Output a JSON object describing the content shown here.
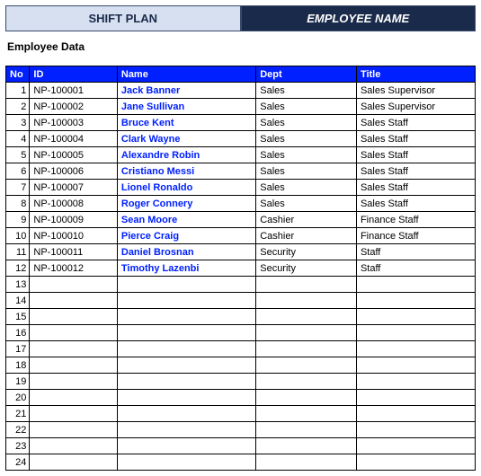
{
  "tabs": {
    "left": "SHIFT PLAN",
    "right": "EMPLOYEE NAME"
  },
  "section_title": "Employee Data",
  "colors": {
    "header_bg": "#0020ff",
    "header_fg": "#ffffff",
    "tab_light_bg": "#d6e0f0",
    "tab_dark_bg": "#1a2a4a",
    "tab_dark_fg": "#ffffff",
    "name_link": "#0020ff",
    "border": "#000000"
  },
  "table": {
    "columns": [
      "No",
      "ID",
      "Name",
      "Dept",
      "Title"
    ],
    "total_rows": 24,
    "rows": [
      {
        "no": 1,
        "id": "NP-100001",
        "name": "Jack Banner",
        "dept": "Sales",
        "title": "Sales Supervisor"
      },
      {
        "no": 2,
        "id": "NP-100002",
        "name": "Jane Sullivan",
        "dept": "Sales",
        "title": "Sales Supervisor"
      },
      {
        "no": 3,
        "id": "NP-100003",
        "name": "Bruce Kent",
        "dept": "Sales",
        "title": "Sales Staff"
      },
      {
        "no": 4,
        "id": "NP-100004",
        "name": "Clark Wayne",
        "dept": "Sales",
        "title": "Sales Staff"
      },
      {
        "no": 5,
        "id": "NP-100005",
        "name": "Alexandre Robin",
        "dept": "Sales",
        "title": "Sales Staff"
      },
      {
        "no": 6,
        "id": "NP-100006",
        "name": "Cristiano Messi",
        "dept": "Sales",
        "title": "Sales Staff"
      },
      {
        "no": 7,
        "id": "NP-100007",
        "name": "Lionel Ronaldo",
        "dept": "Sales",
        "title": "Sales Staff"
      },
      {
        "no": 8,
        "id": "NP-100008",
        "name": "Roger Connery",
        "dept": "Sales",
        "title": "Sales Staff"
      },
      {
        "no": 9,
        "id": "NP-100009",
        "name": "Sean Moore",
        "dept": "Cashier",
        "title": "Finance Staff"
      },
      {
        "no": 10,
        "id": "NP-100010",
        "name": "Pierce Craig",
        "dept": "Cashier",
        "title": "Finance Staff"
      },
      {
        "no": 11,
        "id": "NP-100011",
        "name": "Daniel Brosnan",
        "dept": "Security",
        "title": "Staff"
      },
      {
        "no": 12,
        "id": "NP-100012",
        "name": "Timothy Lazenbi",
        "dept": "Security",
        "title": "Staff"
      }
    ]
  }
}
